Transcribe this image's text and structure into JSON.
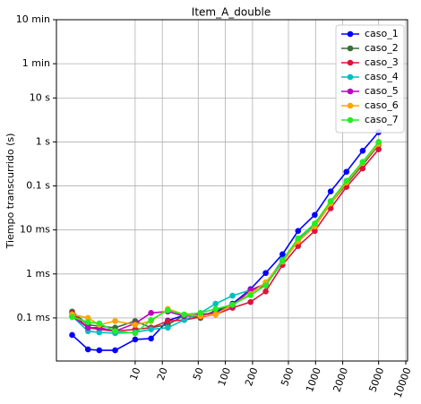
{
  "chart_data": {
    "type": "line",
    "title": "Item_A_double",
    "ylabel": "Tiempo transcurrido (s)",
    "xscale": "log",
    "yscale": "log",
    "grid": true,
    "legend": "upper right",
    "x": [
      2,
      3,
      4,
      6,
      10,
      15,
      23,
      35,
      53,
      78,
      120,
      190,
      280,
      430,
      640,
      980,
      1470,
      2200,
      3330,
      5000
    ],
    "xlim": [
      1.34,
      10470
    ],
    "ylim": [
      1.05e-05,
      600
    ],
    "xticks": [
      10,
      20,
      50,
      100,
      200,
      500,
      1000,
      2000,
      5000,
      10000
    ],
    "yticks": [
      {
        "value": 0.0001,
        "label": "0.1 ms"
      },
      {
        "value": 0.001,
        "label": "1 ms"
      },
      {
        "value": 0.01,
        "label": "10 ms"
      },
      {
        "value": 0.1,
        "label": "0.1 s"
      },
      {
        "value": 1,
        "label": "1 s"
      },
      {
        "value": 10,
        "label": "10 s"
      },
      {
        "value": 60,
        "label": "1 min"
      },
      {
        "value": 600,
        "label": "10 min"
      }
    ],
    "series": [
      {
        "name": "caso_1",
        "color": "#0000ff",
        "values": [
          4.1e-05,
          1.93e-05,
          1.84e-05,
          1.84e-05,
          3.24e-05,
          3.4e-05,
          8.7e-05,
          0.000115,
          0.00011,
          0.000139,
          0.00021,
          0.00045,
          0.00105,
          0.0028,
          0.0095,
          0.022,
          0.075,
          0.21,
          0.63,
          1.67
        ]
      },
      {
        "name": "caso_2",
        "color": "#3a6e3a",
        "values": [
          0.00014,
          7e-05,
          6.5e-05,
          6e-05,
          8.5e-05,
          6e-05,
          7e-05,
          0.000115,
          0.0001,
          0.00015,
          0.00019,
          0.00042,
          0.00055,
          0.0019,
          0.0055,
          0.012,
          0.04,
          0.11,
          0.3,
          0.85
        ]
      },
      {
        "name": "caso_3",
        "color": "#dc143c",
        "values": [
          0.00013,
          6e-05,
          5.5e-05,
          5e-05,
          5.5e-05,
          6e-05,
          8.5e-05,
          9e-05,
          0.000105,
          0.00012,
          0.00017,
          0.00023,
          0.0004,
          0.0016,
          0.0043,
          0.0095,
          0.031,
          0.095,
          0.25,
          0.68
        ]
      },
      {
        "name": "caso_4",
        "color": "#00bfbf",
        "values": [
          0.00011,
          5e-05,
          4.7e-05,
          4.5e-05,
          4.7e-05,
          5.5e-05,
          6e-05,
          9e-05,
          0.00013,
          0.00021,
          0.00032,
          0.00043,
          0.0006,
          0.0021,
          0.006,
          0.013,
          0.045,
          0.13,
          0.35,
          0.95
        ]
      },
      {
        "name": "caso_5",
        "color": "#bf00bf",
        "values": [
          0.00011,
          6e-05,
          6e-05,
          5e-05,
          7.5e-05,
          0.00013,
          0.00014,
          0.00011,
          0.00012,
          0.00013,
          0.00019,
          0.00043,
          0.0006,
          0.002,
          0.0055,
          0.012,
          0.04,
          0.12,
          0.32,
          0.9
        ]
      },
      {
        "name": "caso_6",
        "color": "#ffa500",
        "values": [
          0.00012,
          0.0001,
          7e-05,
          8.5e-05,
          7e-05,
          8.5e-05,
          0.00016,
          0.00012,
          0.00011,
          0.00012,
          0.0002,
          0.00035,
          0.00065,
          0.0019,
          0.0055,
          0.012,
          0.04,
          0.12,
          0.33,
          0.9
        ]
      },
      {
        "name": "caso_7",
        "color": "#22ee22",
        "values": [
          0.000105,
          8e-05,
          7.5e-05,
          5e-05,
          4.5e-05,
          9e-05,
          0.00015,
          0.00012,
          0.00013,
          0.00016,
          0.0002,
          0.00033,
          0.00055,
          0.002,
          0.0065,
          0.014,
          0.045,
          0.13,
          0.35,
          1.0
        ]
      }
    ]
  }
}
